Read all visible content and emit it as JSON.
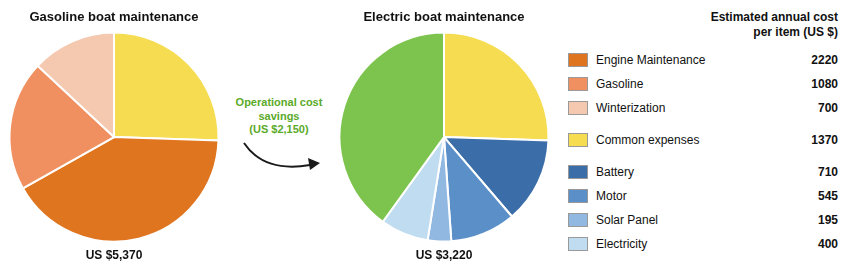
{
  "chart_data": [
    {
      "type": "pie",
      "title": "Gasoline boat maintenance",
      "categories": [
        "Common expenses",
        "Engine Maintenance",
        "Gasoline",
        "Winterization"
      ],
      "values": [
        1370,
        2220,
        1080,
        700
      ],
      "colors": [
        "#F5DC50",
        "#E07520",
        "#F09060",
        "#F5C8B0"
      ],
      "legend": "right",
      "annotations": [
        {
          "text": "US $5,370"
        }
      ]
    },
    {
      "type": "pie",
      "title": "Electric boat maintenance",
      "categories": [
        "Common expenses",
        "Battery",
        "Motor",
        "Solar Panel",
        "Electricity",
        null
      ],
      "values": [
        1370,
        710,
        545,
        195,
        400,
        2150
      ],
      "colors": [
        "#F5DC50",
        "#3B6EA8",
        "#5B8FC8",
        "#90B8E0",
        "#C0DCF0",
        "#7DC44E"
      ],
      "legend": "right",
      "annotations": [
        {
          "text": "US $3,220"
        },
        {
          "text": "Operational cost\nsavings\n(US $2,150)",
          "color": "#5BAA28"
        },
        {
          "text": "Estimated annual cost\nper item (US $)"
        }
      ]
    }
  ]
}
